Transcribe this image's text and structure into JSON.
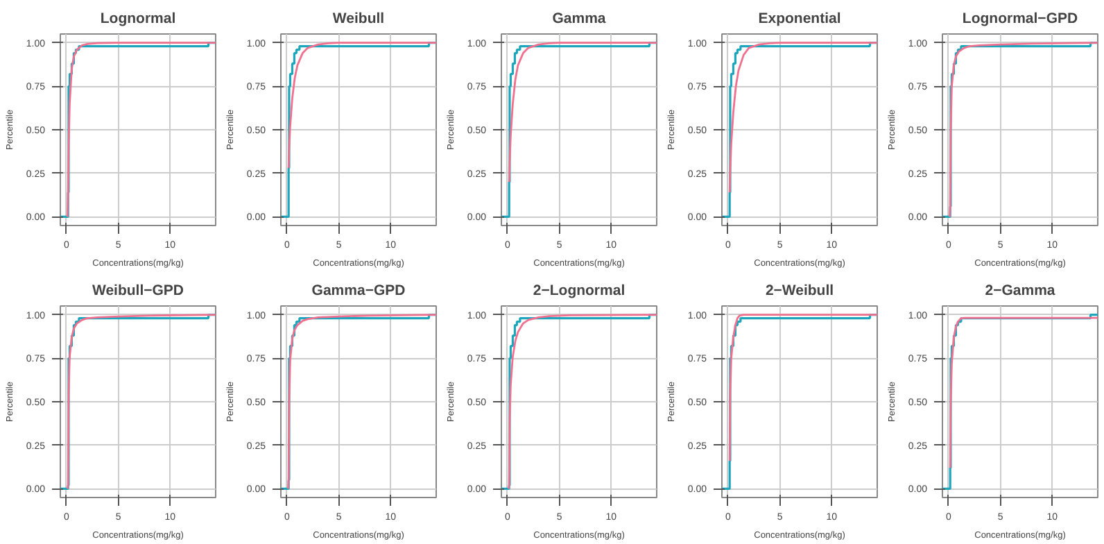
{
  "chart_data": [
    {
      "type": "line",
      "title": "Lognormal",
      "xlabel": "Concentrations(mg/kg)",
      "ylabel": "Percentile",
      "xlim": [
        -0.6,
        14.4
      ],
      "ylim": [
        -0.05,
        1.05
      ],
      "xticks": [
        0,
        5,
        10
      ],
      "yticks": [
        {
          "value": 0,
          "label": "0.00"
        },
        {
          "value": 0.25,
          "label": "0.25"
        },
        {
          "value": 0.5,
          "label": "0.50"
        },
        {
          "value": 0.75,
          "label": "0.75"
        },
        {
          "value": 1,
          "label": "1.00"
        }
      ],
      "grid": true,
      "series": [
        {
          "type": "step",
          "color": "#1ea6bd",
          "x": [
            -0.6,
            0.15,
            0.2,
            0.3,
            0.5,
            0.7,
            0.9,
            1.2,
            13.7,
            14.4
          ],
          "values": [
            0,
            0.14,
            0.75,
            0.82,
            0.88,
            0.94,
            0.96,
            0.98,
            1,
            1
          ]
        },
        {
          "type": "line",
          "color": "#f0708f",
          "x": [
            0.1,
            0.15,
            0.2,
            0.3,
            0.5,
            0.7,
            1,
            1.5,
            2,
            3,
            5,
            14.4
          ],
          "values": [
            0,
            0.14,
            0.4,
            0.65,
            0.85,
            0.92,
            0.96,
            0.985,
            0.993,
            0.998,
            1,
            1
          ]
        }
      ]
    },
    {
      "type": "line",
      "title": "Weibull",
      "xlabel": "Concentrations(mg/kg)",
      "ylabel": "Percentile",
      "xlim": [
        -0.6,
        14.4
      ],
      "ylim": [
        -0.05,
        1.05
      ],
      "xticks": [
        0,
        5,
        10
      ],
      "yticks": [
        {
          "value": 0,
          "label": "0.00"
        },
        {
          "value": 0.25,
          "label": "0.25"
        },
        {
          "value": 0.5,
          "label": "0.50"
        },
        {
          "value": 0.75,
          "label": "0.75"
        },
        {
          "value": 1,
          "label": "1.00"
        }
      ],
      "grid": true,
      "series": [
        {
          "type": "step",
          "color": "#1ea6bd",
          "x": [
            -0.6,
            0.15,
            0.2,
            0.3,
            0.5,
            0.7,
            0.9,
            1.2,
            13.7,
            14.4
          ],
          "values": [
            0,
            0.28,
            0.75,
            0.82,
            0.88,
            0.94,
            0.96,
            0.98,
            1,
            1
          ]
        },
        {
          "type": "line",
          "color": "#f0708f",
          "x": [
            0.15,
            0.2,
            0.3,
            0.5,
            0.75,
            1,
            1.5,
            2,
            3,
            4,
            5,
            14.4
          ],
          "values": [
            0.28,
            0.4,
            0.52,
            0.68,
            0.8,
            0.87,
            0.94,
            0.97,
            0.99,
            0.997,
            1,
            1
          ]
        }
      ]
    },
    {
      "type": "line",
      "title": "Gamma",
      "xlabel": "Concentrations(mg/kg)",
      "ylabel": "Percentile",
      "xlim": [
        -0.6,
        14.4
      ],
      "ylim": [
        -0.05,
        1.05
      ],
      "xticks": [
        0,
        5,
        10
      ],
      "yticks": [
        {
          "value": 0,
          "label": "0.00"
        },
        {
          "value": 0.25,
          "label": "0.25"
        },
        {
          "value": 0.5,
          "label": "0.50"
        },
        {
          "value": 0.75,
          "label": "0.75"
        },
        {
          "value": 1,
          "label": "1.00"
        }
      ],
      "grid": true,
      "series": [
        {
          "type": "step",
          "color": "#1ea6bd",
          "x": [
            -0.6,
            0.15,
            0.2,
            0.3,
            0.5,
            0.7,
            0.9,
            1.2,
            13.7,
            14.4
          ],
          "values": [
            0,
            0.2,
            0.75,
            0.82,
            0.88,
            0.94,
            0.96,
            0.98,
            1,
            1
          ]
        },
        {
          "type": "line",
          "color": "#f0708f",
          "x": [
            0.15,
            0.2,
            0.3,
            0.5,
            0.75,
            1,
            1.5,
            2,
            3,
            4,
            5,
            14.4
          ],
          "values": [
            0.2,
            0.32,
            0.47,
            0.65,
            0.79,
            0.87,
            0.94,
            0.97,
            0.99,
            0.997,
            1,
            1
          ]
        }
      ]
    },
    {
      "type": "line",
      "title": "Exponential",
      "xlabel": "Concentrations(mg/kg)",
      "ylabel": "Percentile",
      "xlim": [
        -0.6,
        14.4
      ],
      "ylim": [
        -0.05,
        1.05
      ],
      "xticks": [
        0,
        5,
        10
      ],
      "yticks": [
        {
          "value": 0,
          "label": "0.00"
        },
        {
          "value": 0.25,
          "label": "0.25"
        },
        {
          "value": 0.5,
          "label": "0.50"
        },
        {
          "value": 0.75,
          "label": "0.75"
        },
        {
          "value": 1,
          "label": "1.00"
        }
      ],
      "grid": true,
      "series": [
        {
          "type": "step",
          "color": "#1ea6bd",
          "x": [
            -0.6,
            0.15,
            0.2,
            0.3,
            0.5,
            0.7,
            0.9,
            1.2,
            13.7,
            14.4
          ],
          "values": [
            0,
            0.14,
            0.75,
            0.82,
            0.88,
            0.94,
            0.96,
            0.98,
            1,
            1
          ]
        },
        {
          "type": "line",
          "color": "#f0708f",
          "x": [
            0.15,
            0.2,
            0.3,
            0.5,
            0.75,
            1,
            1.5,
            2,
            3,
            4,
            5,
            14.4
          ],
          "values": [
            0.14,
            0.27,
            0.42,
            0.6,
            0.75,
            0.84,
            0.93,
            0.97,
            0.99,
            0.997,
            1,
            1
          ]
        }
      ]
    },
    {
      "type": "line",
      "title": "Lognormal−GPD",
      "xlabel": "Concentrations(mg/kg)",
      "ylabel": "Percentile",
      "xlim": [
        -0.6,
        14.4
      ],
      "ylim": [
        -0.05,
        1.05
      ],
      "xticks": [
        0,
        5,
        10
      ],
      "yticks": [
        {
          "value": 0,
          "label": "0.00"
        },
        {
          "value": 0.25,
          "label": "0.25"
        },
        {
          "value": 0.5,
          "label": "0.50"
        },
        {
          "value": 0.75,
          "label": "0.75"
        },
        {
          "value": 1,
          "label": "1.00"
        }
      ],
      "grid": true,
      "series": [
        {
          "type": "step",
          "color": "#1ea6bd",
          "x": [
            -0.6,
            0.15,
            0.2,
            0.3,
            0.5,
            0.7,
            0.9,
            1.2,
            13.7,
            14.4
          ],
          "values": [
            0,
            0.06,
            0.75,
            0.82,
            0.88,
            0.94,
            0.96,
            0.98,
            1,
            1
          ]
        },
        {
          "type": "line",
          "color": "#f0708f",
          "x": [
            0.1,
            0.15,
            0.2,
            0.3,
            0.5,
            0.7,
            1,
            1.5,
            2,
            3,
            5,
            8,
            14.4
          ],
          "values": [
            0,
            0.06,
            0.5,
            0.75,
            0.87,
            0.92,
            0.95,
            0.97,
            0.98,
            0.985,
            0.99,
            0.995,
            1
          ]
        }
      ]
    },
    {
      "type": "line",
      "title": "Weibull−GPD",
      "xlabel": "Concentrations(mg/kg)",
      "ylabel": "Percentile",
      "xlim": [
        -0.6,
        14.4
      ],
      "ylim": [
        -0.05,
        1.05
      ],
      "xticks": [
        0,
        5,
        10
      ],
      "yticks": [
        {
          "value": 0,
          "label": "0.00"
        },
        {
          "value": 0.25,
          "label": "0.25"
        },
        {
          "value": 0.5,
          "label": "0.50"
        },
        {
          "value": 0.75,
          "label": "0.75"
        },
        {
          "value": 1,
          "label": "1.00"
        }
      ],
      "grid": true,
      "series": [
        {
          "type": "step",
          "color": "#1ea6bd",
          "x": [
            -0.6,
            0.15,
            0.2,
            0.3,
            0.5,
            0.7,
            0.9,
            1.2,
            13.7,
            14.4
          ],
          "values": [
            0,
            0.02,
            0.75,
            0.82,
            0.88,
            0.94,
            0.96,
            0.98,
            1,
            1
          ]
        },
        {
          "type": "line",
          "color": "#f0708f",
          "x": [
            0.1,
            0.15,
            0.2,
            0.3,
            0.5,
            0.7,
            1,
            1.5,
            2,
            3,
            5,
            8,
            14.4
          ],
          "values": [
            0,
            0.02,
            0.55,
            0.76,
            0.87,
            0.92,
            0.95,
            0.97,
            0.98,
            0.985,
            0.99,
            0.995,
            1
          ]
        }
      ]
    },
    {
      "type": "line",
      "title": "Gamma−GPD",
      "xlabel": "Concentrations(mg/kg)",
      "ylabel": "Percentile",
      "xlim": [
        -0.6,
        14.4
      ],
      "ylim": [
        -0.05,
        1.05
      ],
      "xticks": [
        0,
        5,
        10
      ],
      "yticks": [
        {
          "value": 0,
          "label": "0.00"
        },
        {
          "value": 0.25,
          "label": "0.25"
        },
        {
          "value": 0.5,
          "label": "0.50"
        },
        {
          "value": 0.75,
          "label": "0.75"
        },
        {
          "value": 1,
          "label": "1.00"
        }
      ],
      "grid": true,
      "series": [
        {
          "type": "step",
          "color": "#1ea6bd",
          "x": [
            -0.6,
            0.15,
            0.2,
            0.3,
            0.5,
            0.7,
            0.9,
            1.2,
            13.7,
            14.4
          ],
          "values": [
            0,
            0.05,
            0.75,
            0.82,
            0.88,
            0.94,
            0.96,
            0.98,
            1,
            1
          ]
        },
        {
          "type": "line",
          "color": "#f0708f",
          "x": [
            0.1,
            0.15,
            0.2,
            0.3,
            0.5,
            0.7,
            1,
            1.5,
            2,
            3,
            5,
            8,
            14.4
          ],
          "values": [
            0,
            0.05,
            0.5,
            0.74,
            0.86,
            0.91,
            0.94,
            0.965,
            0.975,
            0.985,
            0.99,
            0.995,
            1
          ]
        }
      ]
    },
    {
      "type": "line",
      "title": "2−Lognormal",
      "xlabel": "Concentrations(mg/kg)",
      "ylabel": "Percentile",
      "xlim": [
        -0.6,
        14.4
      ],
      "ylim": [
        -0.05,
        1.05
      ],
      "xticks": [
        0,
        5,
        10
      ],
      "yticks": [
        {
          "value": 0,
          "label": "0.00"
        },
        {
          "value": 0.25,
          "label": "0.25"
        },
        {
          "value": 0.5,
          "label": "0.50"
        },
        {
          "value": 0.75,
          "label": "0.75"
        },
        {
          "value": 1,
          "label": "1.00"
        }
      ],
      "grid": true,
      "series": [
        {
          "type": "step",
          "color": "#1ea6bd",
          "x": [
            -0.6,
            0.15,
            0.2,
            0.3,
            0.5,
            0.7,
            0.9,
            1.2,
            13.7,
            14.4
          ],
          "values": [
            0,
            0.02,
            0.75,
            0.82,
            0.88,
            0.94,
            0.96,
            0.98,
            1,
            1
          ]
        },
        {
          "type": "line",
          "color": "#f0708f",
          "x": [
            0.1,
            0.15,
            0.2,
            0.3,
            0.5,
            0.75,
            1,
            1.5,
            2,
            3,
            4,
            6,
            14.4
          ],
          "values": [
            0,
            0.02,
            0.4,
            0.6,
            0.76,
            0.85,
            0.9,
            0.95,
            0.97,
            0.985,
            0.992,
            0.997,
            1
          ]
        }
      ]
    },
    {
      "type": "line",
      "title": "2−Weibull",
      "xlabel": "Concentrations(mg/kg)",
      "ylabel": "Percentile",
      "xlim": [
        -0.6,
        14.4
      ],
      "ylim": [
        -0.05,
        1.05
      ],
      "xticks": [
        0,
        5,
        10
      ],
      "yticks": [
        {
          "value": 0,
          "label": "0.00"
        },
        {
          "value": 0.25,
          "label": "0.25"
        },
        {
          "value": 0.5,
          "label": "0.50"
        },
        {
          "value": 0.75,
          "label": "0.75"
        },
        {
          "value": 1,
          "label": "1.00"
        }
      ],
      "grid": true,
      "series": [
        {
          "type": "step",
          "color": "#1ea6bd",
          "x": [
            -0.6,
            0.15,
            0.2,
            0.3,
            0.5,
            0.7,
            0.9,
            1.2,
            13.7,
            14.4
          ],
          "values": [
            0,
            0.16,
            0.75,
            0.82,
            0.88,
            0.94,
            0.96,
            0.98,
            1,
            1
          ]
        },
        {
          "type": "line",
          "color": "#f0708f",
          "x": [
            0.15,
            0.2,
            0.3,
            0.5,
            0.7,
            0.9,
            1.1,
            1.5,
            14.4
          ],
          "values": [
            0.16,
            0.55,
            0.75,
            0.87,
            0.94,
            0.98,
            0.995,
            1,
            1
          ]
        }
      ]
    },
    {
      "type": "line",
      "title": "2−Gamma",
      "xlabel": "Concentrations(mg/kg)",
      "ylabel": "Percentile",
      "xlim": [
        -0.6,
        14.4
      ],
      "ylim": [
        -0.05,
        1.05
      ],
      "xticks": [
        0,
        5,
        10
      ],
      "yticks": [
        {
          "value": 0,
          "label": "0.00"
        },
        {
          "value": 0.25,
          "label": "0.25"
        },
        {
          "value": 0.5,
          "label": "0.50"
        },
        {
          "value": 0.75,
          "label": "0.75"
        },
        {
          "value": 1,
          "label": "1.00"
        }
      ],
      "grid": true,
      "series": [
        {
          "type": "step",
          "color": "#1ea6bd",
          "x": [
            -0.6,
            0.15,
            0.2,
            0.3,
            0.5,
            0.7,
            0.9,
            1.2,
            13.7,
            14.4
          ],
          "values": [
            0,
            0.12,
            0.75,
            0.82,
            0.88,
            0.94,
            0.96,
            0.98,
            1,
            1
          ]
        },
        {
          "type": "line",
          "color": "#f0708f",
          "x": [
            0.15,
            0.2,
            0.3,
            0.5,
            0.7,
            0.9,
            1.2,
            1.5,
            14.4
          ],
          "values": [
            0.12,
            0.5,
            0.72,
            0.87,
            0.93,
            0.96,
            0.98,
            0.982,
            0.982
          ]
        }
      ]
    }
  ]
}
